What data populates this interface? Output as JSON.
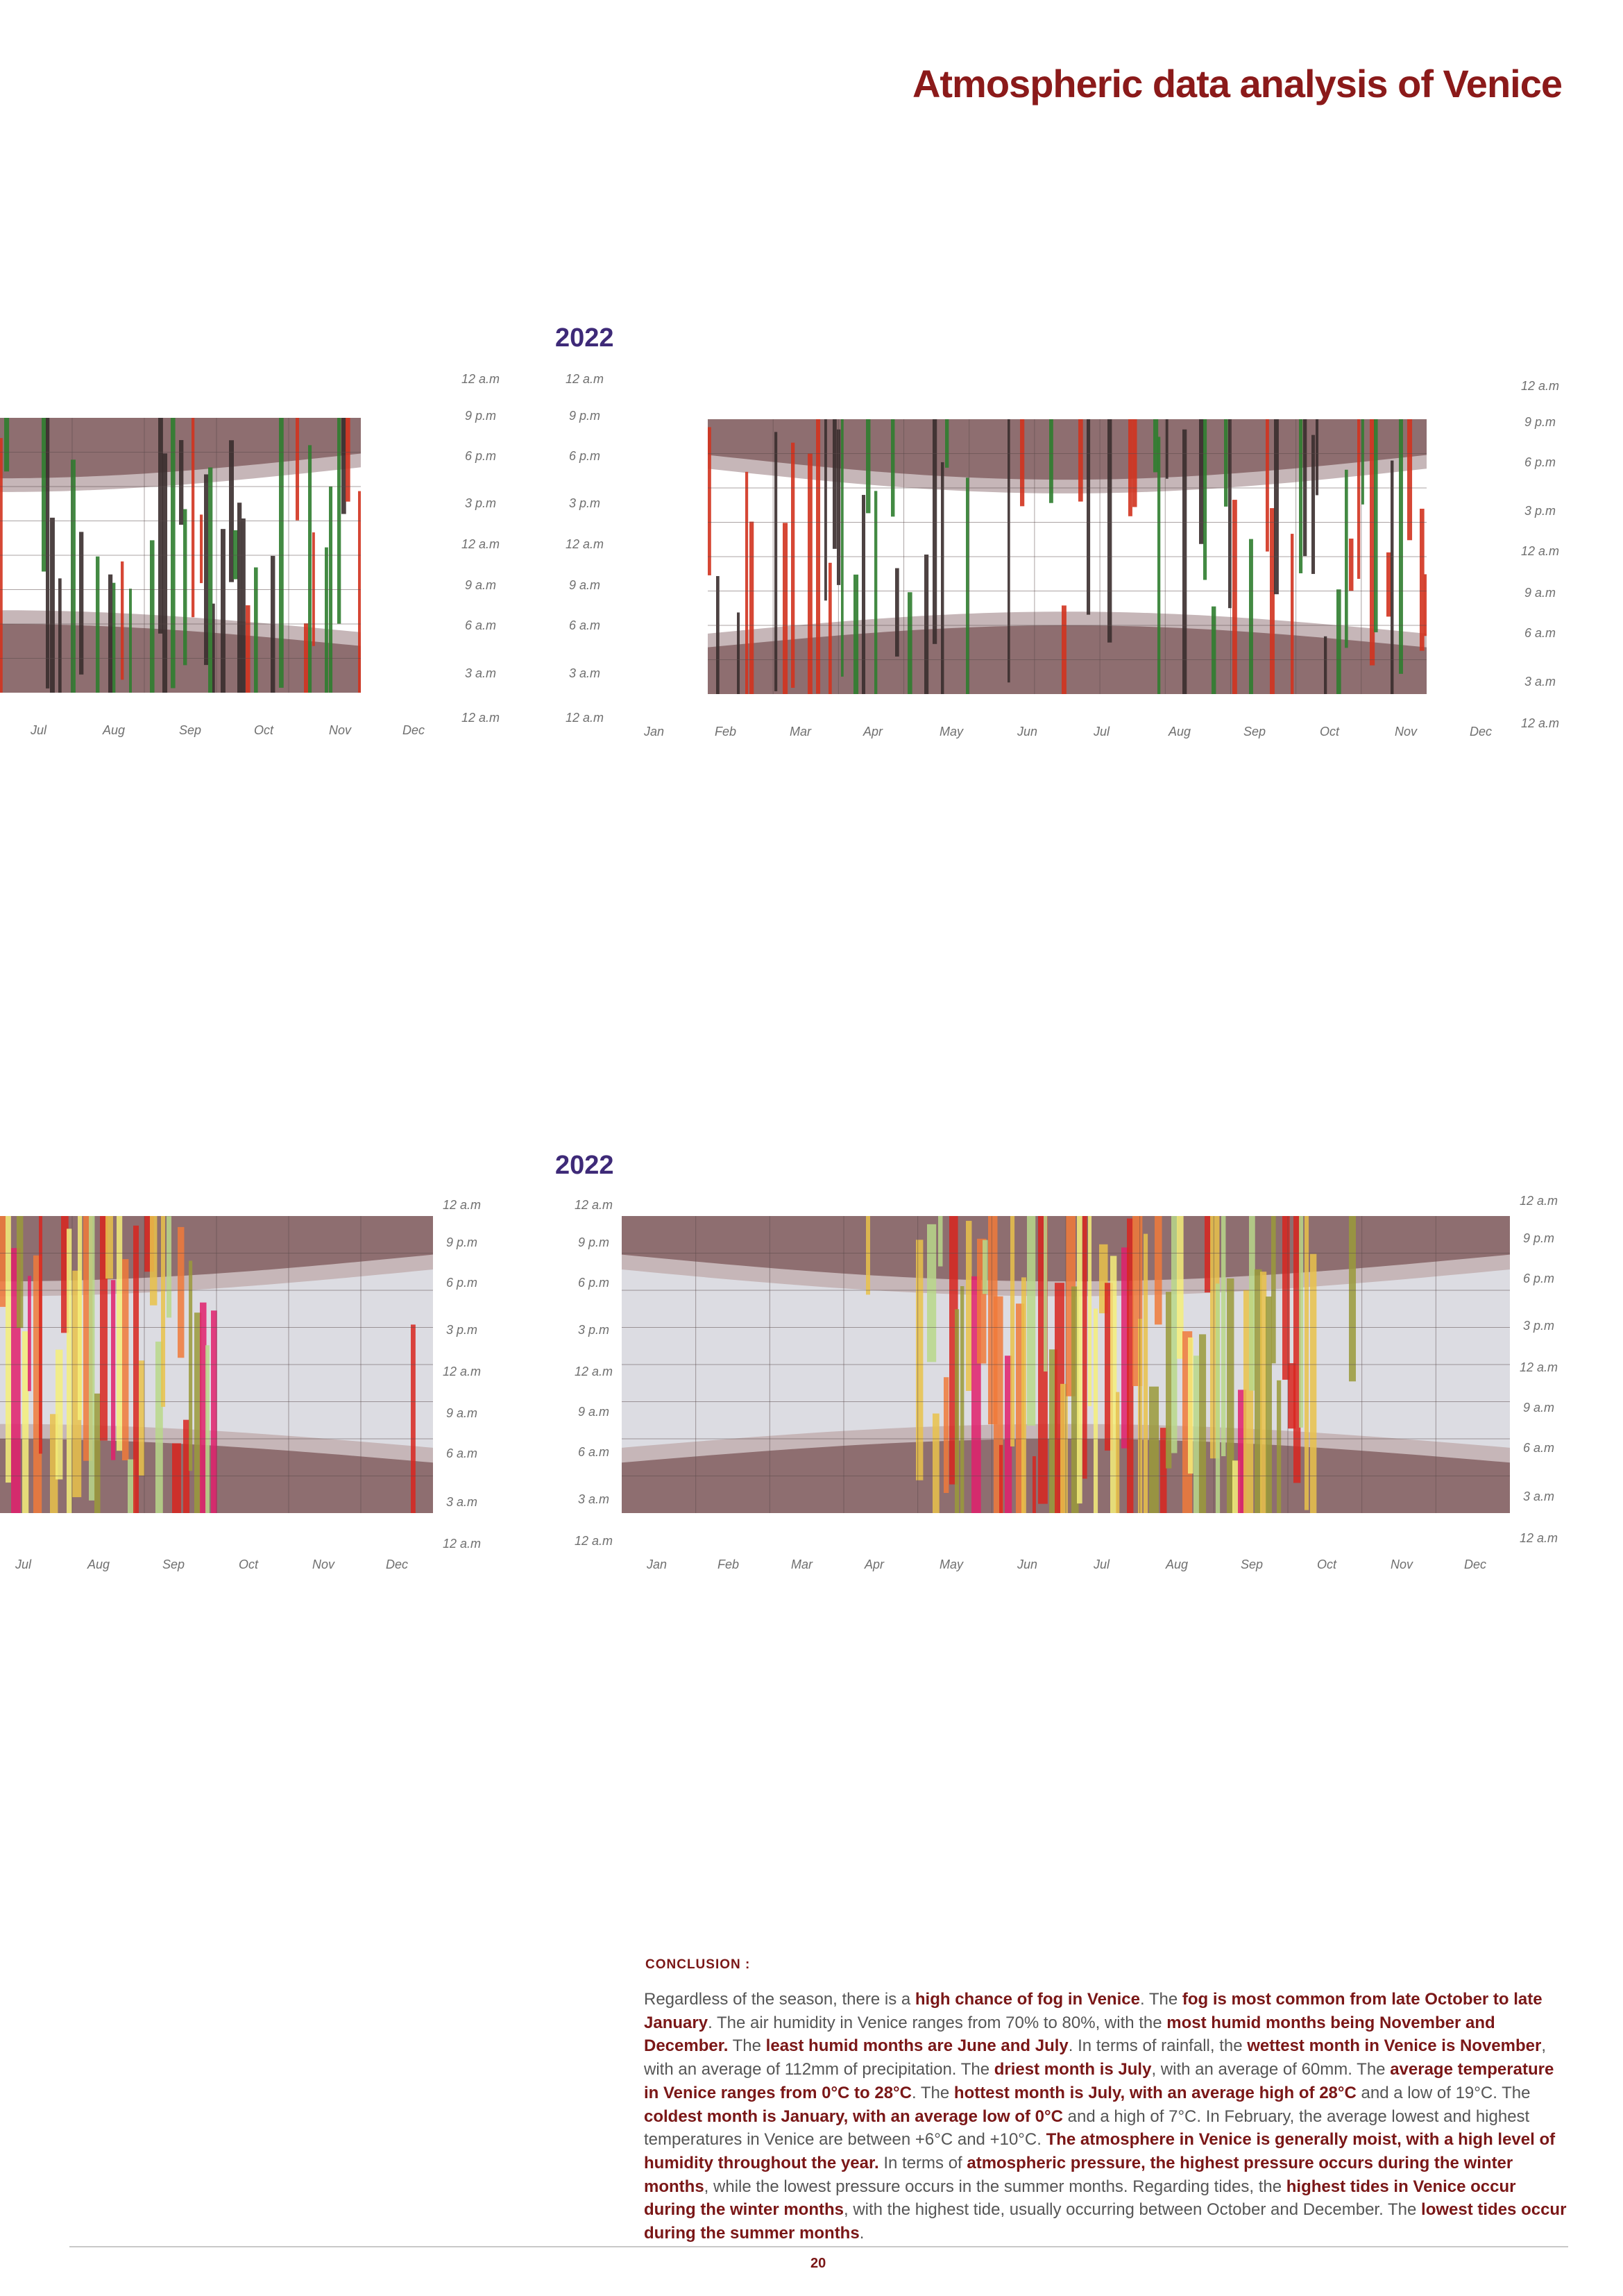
{
  "page": {
    "title": "Atmospheric data analysis of Venice",
    "page_number": "20"
  },
  "colors": {
    "title": "#8b1a1a",
    "year": "#3e2a78",
    "night_band": "#8e6e70",
    "twilight_band": "#c6b6b8",
    "fog_chart_day": "#ffffff",
    "pressure_chart_day": "#dcdce2",
    "fog_marks": [
      "#3a2e2e",
      "#2f7d2f",
      "#d2331f"
    ],
    "pressure_marks": [
      "#f4ef7a",
      "#e9c24a",
      "#f07a3a",
      "#d8261e",
      "#e0206c",
      "#9a9a3a",
      "#b8d88a"
    ]
  },
  "charts": [
    {
      "id": "fog-2021-partial",
      "month_labels": [
        "Jul",
        "Aug",
        "Sep",
        "Oct",
        "Nov",
        "Dec"
      ],
      "hour_labels": [
        "12 a.m",
        "9 p.m",
        "6 p.m",
        "3 p.m",
        "12 a.m",
        "9 a.m",
        "6 a.m",
        "3 a.m",
        "12 a.m"
      ]
    },
    {
      "id": "fog-2022",
      "year": "2022",
      "month_labels": [
        "Jan",
        "Feb",
        "Mar",
        "Apr",
        "May",
        "Jun",
        "Jul",
        "Aug",
        "Sep",
        "Oct",
        "Nov",
        "Dec"
      ],
      "hour_labels_left": [
        "12 a.m",
        "9 p.m",
        "6 p.m",
        "3 p.m",
        "12 a.m",
        "9 a.m",
        "6 a.m",
        "3 a.m",
        "12 a.m"
      ],
      "hour_labels_right": [
        "12 a.m",
        "9 p.m",
        "6 p.m",
        "3 p.m",
        "12 a.m",
        "9 a.m",
        "6 a.m",
        "3 a.m",
        "12 a.m"
      ]
    },
    {
      "id": "pressure-2021-partial",
      "month_labels": [
        "Jul",
        "Aug",
        "Sep",
        "Oct",
        "Nov",
        "Dec"
      ],
      "hour_labels": [
        "12 a.m",
        "9 p.m",
        "6 p.m",
        "3 p.m",
        "12 a.m",
        "9 a.m",
        "6 a.m",
        "3 a.m",
        "12 a.m"
      ]
    },
    {
      "id": "pressure-2022",
      "year": "2022",
      "month_labels": [
        "Jan",
        "Feb",
        "Mar",
        "Apr",
        "May",
        "Jun",
        "Jul",
        "Aug",
        "Sep",
        "Oct",
        "Nov",
        "Dec"
      ],
      "hour_labels_left": [
        "12 a.m",
        "9 p.m",
        "6 p.m",
        "3 p.m",
        "12 a.m",
        "9 a.m",
        "6 a.m",
        "3 a.m",
        "12 a.m"
      ],
      "hour_labels_right": [
        "12 a.m",
        "9 p.m",
        "6 p.m",
        "3 p.m",
        "12 a.m",
        "9 a.m",
        "6 a.m",
        "3 a.m",
        "12 a.m"
      ]
    }
  ],
  "conclusion": {
    "heading": "CONCLUSION :",
    "segments": [
      {
        "t": "Regardless of the season, there is a ",
        "b": false
      },
      {
        "t": "high chance of fog in Venice",
        "b": true
      },
      {
        "t": ". The ",
        "b": false
      },
      {
        "t": "fog is most common from late October to late January",
        "b": true
      },
      {
        "t": ". The air humidity in Venice ranges from 70% to 80%, with the ",
        "b": false
      },
      {
        "t": "most humid months being November and December.",
        "b": true
      },
      {
        "t": " The ",
        "b": false
      },
      {
        "t": "least humid months are June and July",
        "b": true
      },
      {
        "t": ". In terms of rainfall, the ",
        "b": false
      },
      {
        "t": "wettest month in Venice is November",
        "b": true
      },
      {
        "t": ", with an average of 112mm of precipitation. The ",
        "b": false
      },
      {
        "t": "driest month is July",
        "b": true
      },
      {
        "t": ", with an average of 60mm.  The ",
        "b": false
      },
      {
        "t": "average temperature in Venice ranges from 0°C to 28°C",
        "b": true
      },
      {
        "t": ". The ",
        "b": false
      },
      {
        "t": "hottest month is July, with an average high of 28°C",
        "b": true
      },
      {
        "t": " and a low of 19°C. The ",
        "b": false
      },
      {
        "t": "coldest month is January, with an average low of 0°C",
        "b": true
      },
      {
        "t": " and a high of 7°C. In February, the average lowest and highest temperatures in Venice are between +6°C and +10°C. ",
        "b": false
      },
      {
        "t": "The atmosphere in Venice is generally moist, with a high level of humidity throughout the year.",
        "b": true
      },
      {
        "t": " In terms of ",
        "b": false
      },
      {
        "t": "atmospheric pressure, the highest pressure occurs during the winter months",
        "b": true
      },
      {
        "t": ", while the lowest pressure occurs in the summer months. Regarding tides, the ",
        "b": false
      },
      {
        "t": "highest tides in Venice occur during the winter months",
        "b": true
      },
      {
        "t": ", with the highest tide, usually occurring between October and December. The ",
        "b": false
      },
      {
        "t": "lowest tides occur during the summer months",
        "b": true
      },
      {
        "t": ".",
        "b": false
      }
    ]
  }
}
